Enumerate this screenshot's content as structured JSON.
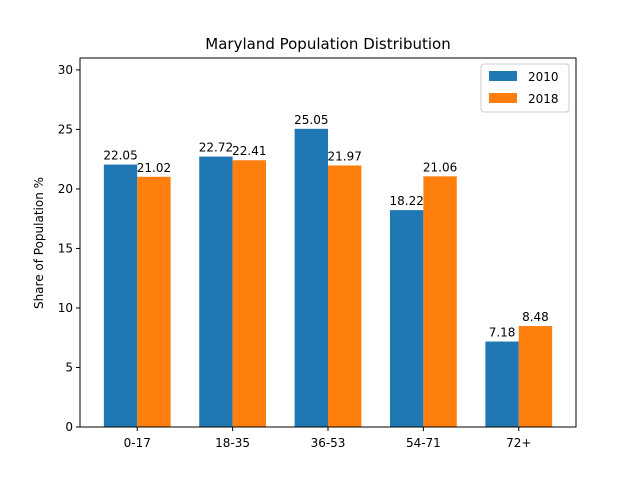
{
  "chart_data": {
    "type": "bar",
    "title": "Maryland Population Distribution",
    "xlabel": "",
    "ylabel": "Share of Population %",
    "categories": [
      "0-17",
      "18-35",
      "36-53",
      "54-71",
      "72+"
    ],
    "series": [
      {
        "name": "2010",
        "color": "#1f77b4",
        "values": [
          22.05,
          22.72,
          25.05,
          18.22,
          7.18
        ]
      },
      {
        "name": "2018",
        "color": "#ff7f0e",
        "values": [
          21.02,
          22.41,
          21.97,
          21.06,
          8.48
        ]
      }
    ],
    "ylim": [
      0,
      31
    ],
    "yticks": [
      0,
      5,
      10,
      15,
      20,
      25,
      30
    ],
    "grid": false,
    "legend_position": "top-right"
  }
}
